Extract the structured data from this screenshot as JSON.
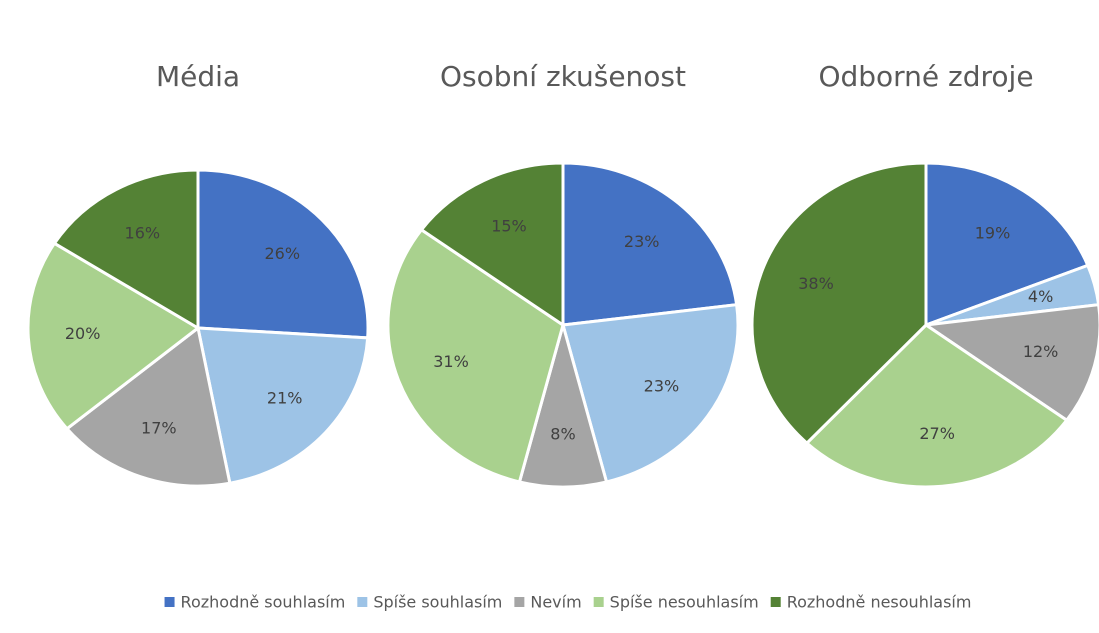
{
  "chart_data": [
    {
      "type": "pie",
      "title": "Média",
      "categories": [
        "Rozhodně souhlasím",
        "Spíše souhlasím",
        "Nevím",
        "Spíše nesouhlasím",
        "Rozhodně nesouhlasím"
      ],
      "colors": [
        "#4472c4",
        "#9dc3e6",
        "#a5a5a5",
        "#a9d18e",
        "#548235"
      ],
      "values": [
        26,
        21,
        17,
        20,
        16
      ],
      "value_labels": [
        "26%",
        "21%",
        "17%",
        "20%",
        "16%"
      ]
    },
    {
      "type": "pie",
      "title": "Osobní zkušenost",
      "categories": [
        "Rozhodně souhlasím",
        "Spíše souhlasím",
        "Nevím",
        "Spíše nesouhlasím",
        "Rozhodně nesouhlasím"
      ],
      "colors": [
        "#4472c4",
        "#9dc3e6",
        "#a5a5a5",
        "#a9d18e",
        "#548235"
      ],
      "values": [
        23,
        23,
        8,
        31,
        15
      ],
      "value_labels": [
        "23%",
        "23%",
        "8%",
        "31%",
        "15%"
      ]
    },
    {
      "type": "pie",
      "title": "Odborné zdroje",
      "categories": [
        "Rozhodně souhlasím",
        "Spíše souhlasím",
        "Nevím",
        "Spíše nesouhlasím",
        "Rozhodně nesouhlasím"
      ],
      "colors": [
        "#4472c4",
        "#9dc3e6",
        "#a5a5a5",
        "#a9d18e",
        "#548235"
      ],
      "values": [
        19,
        4,
        12,
        27,
        38
      ],
      "value_labels": [
        "19%",
        "4%",
        "12%",
        "27%",
        "38%"
      ]
    }
  ]
}
